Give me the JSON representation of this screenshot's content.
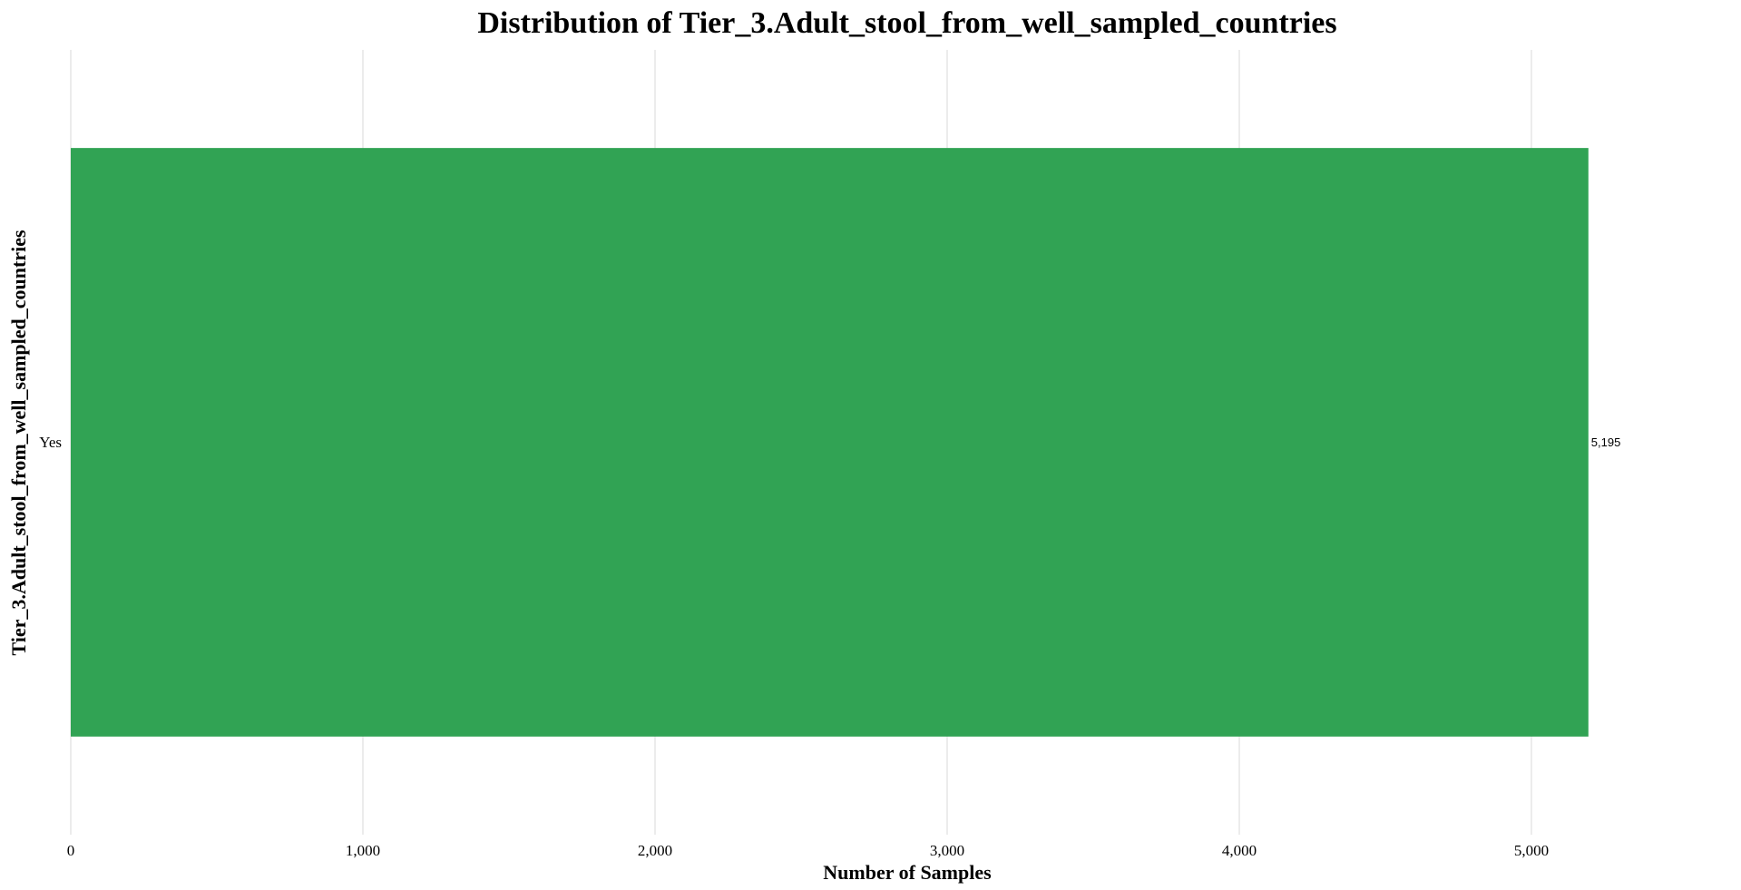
{
  "chart_data": {
    "type": "bar",
    "orientation": "horizontal",
    "title": "Distribution of Tier_3.Adult_stool_from_well_sampled_countries",
    "xlabel": "Number of Samples",
    "ylabel": "Tier_3.Adult_stool_from_well_sampled_countries",
    "categories": [
      "Yes"
    ],
    "values": [
      5195
    ],
    "value_labels": [
      "5,195"
    ],
    "xlim": [
      0,
      5600
    ],
    "x_ticks": [
      0,
      1000,
      2000,
      3000,
      4000,
      5000
    ],
    "x_tick_labels": [
      "0",
      "1,000",
      "2,000",
      "3,000",
      "4,000",
      "5,000"
    ],
    "grid": "vertical",
    "legend": "none",
    "bar_color": "#31a354"
  }
}
